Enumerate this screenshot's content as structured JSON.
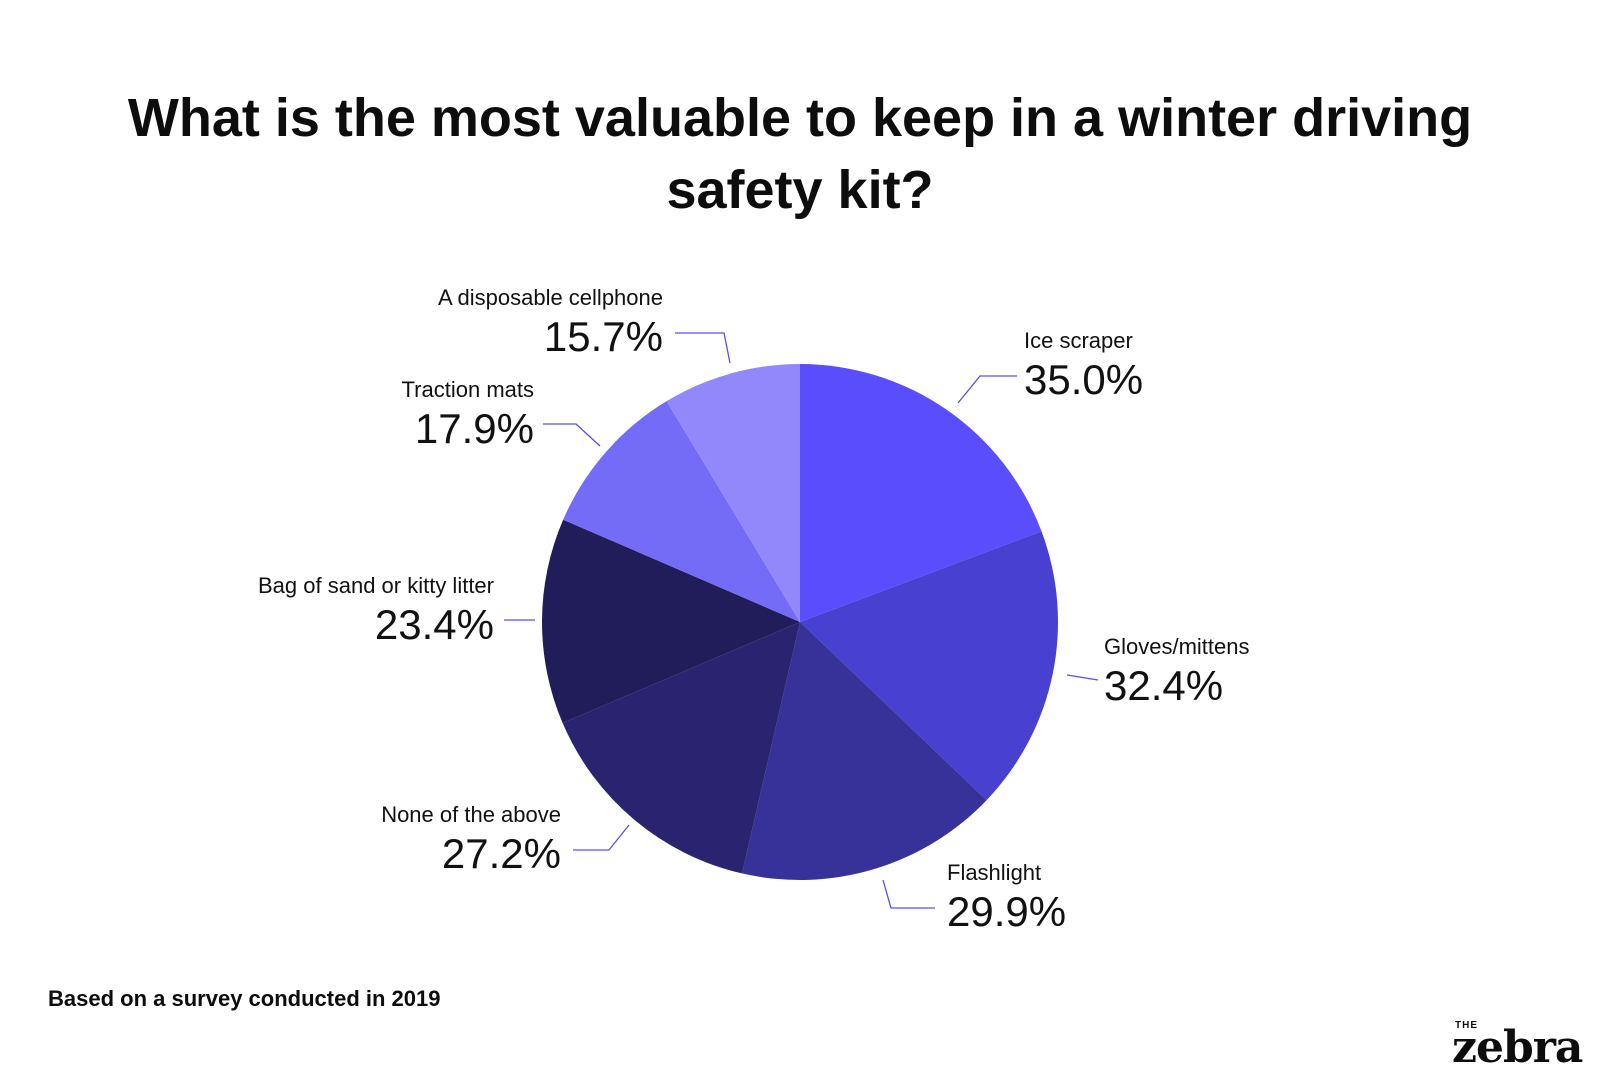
{
  "chart_data": {
    "type": "pie",
    "title": "What is the most valuable to keep in a winter driving safety kit?",
    "slices": [
      {
        "label": "Ice scraper",
        "value": 35.0,
        "value_label": "35.0%",
        "color": "#5a4dfc"
      },
      {
        "label": "Gloves/mittens",
        "value": 32.4,
        "value_label": "32.4%",
        "color": "#4740d0"
      },
      {
        "label": "Flashlight",
        "value": 29.9,
        "value_label": "29.9%",
        "color": "#37319a"
      },
      {
        "label": "None of the above",
        "value": 27.2,
        "value_label": "27.2%",
        "color": "#2a2470"
      },
      {
        "label": "Bag of sand or kitty litter",
        "value": 23.4,
        "value_label": "23.4%",
        "color": "#211d5a"
      },
      {
        "label": "Traction mats",
        "value": 17.9,
        "value_label": "17.9%",
        "color": "#746bf7"
      },
      {
        "label": "A disposable cellphone",
        "value": 15.7,
        "value_label": "15.7%",
        "color": "#9189fb"
      }
    ],
    "start_angle": "12 o'clock",
    "direction": "clockwise",
    "leader_line_color": "#5a4dfc"
  },
  "footnote": "Based on a survey conducted in 2019",
  "brand": {
    "small": "THE",
    "name": "zebra"
  }
}
